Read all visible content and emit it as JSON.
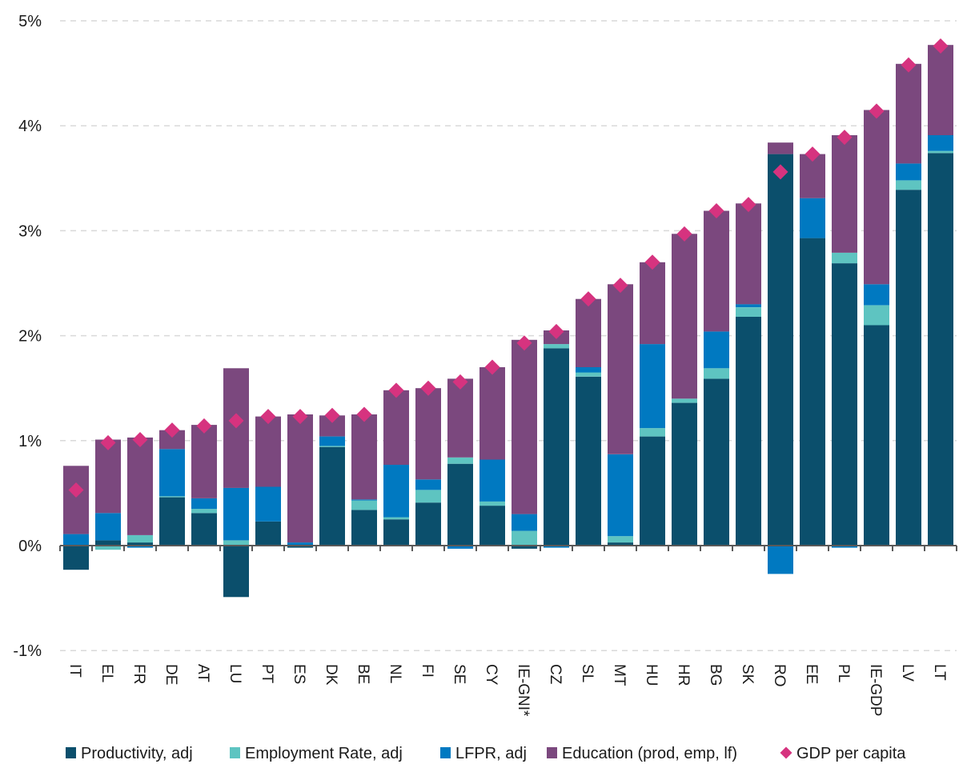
{
  "chart_data": {
    "type": "bar",
    "stacked": true,
    "title": "",
    "xlabel": "",
    "ylabel": "",
    "ylim": [
      -1,
      5
    ],
    "y_unit": "%",
    "y_ticks": [
      "5%",
      "4%",
      "3%",
      "2%",
      "1%",
      "0%",
      "-1%"
    ],
    "y_tick_values": [
      5,
      4,
      3,
      2,
      1,
      0,
      -1
    ],
    "grid": "horizontal dashed",
    "legend_position": "bottom",
    "categories": [
      "IT",
      "EL",
      "FR",
      "DE",
      "AT",
      "LU",
      "PT",
      "ES",
      "DK",
      "BE",
      "NL",
      "FI",
      "SE",
      "CY",
      "IE-GNI*",
      "CZ",
      "SL",
      "MT",
      "HU",
      "HR",
      "BG",
      "SK",
      "RO",
      "EE",
      "PL",
      "IE-GDP",
      "LV",
      "LT"
    ],
    "series": [
      {
        "name": "Productivity, adj",
        "kind": "bar",
        "color": "#0b4f6c",
        "values": [
          -0.23,
          0.05,
          0.03,
          0.46,
          0.31,
          -0.49,
          0.23,
          -0.02,
          0.94,
          0.34,
          0.25,
          0.41,
          0.78,
          0.38,
          -0.03,
          1.88,
          1.61,
          0.03,
          1.04,
          1.36,
          1.59,
          2.18,
          3.73,
          2.93,
          2.69,
          2.1,
          3.39,
          3.74
        ]
      },
      {
        "name": "Employment Rate, adj",
        "kind": "bar",
        "color": "#5ec4c1",
        "values": [
          0.0,
          -0.04,
          0.07,
          0.01,
          0.04,
          0.05,
          0.0,
          0.0,
          0.01,
          0.09,
          0.02,
          0.12,
          0.06,
          0.04,
          0.14,
          0.04,
          0.04,
          0.06,
          0.08,
          0.04,
          0.1,
          0.09,
          0.0,
          0.0,
          0.1,
          0.19,
          0.09,
          0.02
        ]
      },
      {
        "name": "LFPR, adj",
        "kind": "bar",
        "color": "#0079c1",
        "values": [
          0.11,
          0.26,
          -0.02,
          0.45,
          0.1,
          0.5,
          0.33,
          0.03,
          0.09,
          0.01,
          0.5,
          0.1,
          -0.03,
          0.4,
          0.16,
          -0.02,
          0.05,
          0.78,
          0.8,
          0.0,
          0.35,
          0.03,
          -0.27,
          0.38,
          -0.02,
          0.2,
          0.16,
          0.15
        ]
      },
      {
        "name": "Education (prod, emp, lf)",
        "kind": "bar",
        "color": "#7b487e",
        "values": [
          0.65,
          0.7,
          0.93,
          0.18,
          0.7,
          1.14,
          0.67,
          1.22,
          0.2,
          0.81,
          0.71,
          0.87,
          0.75,
          0.88,
          1.66,
          0.13,
          0.65,
          1.62,
          0.78,
          1.57,
          1.15,
          0.96,
          0.11,
          0.42,
          1.12,
          1.66,
          0.95,
          0.86
        ]
      },
      {
        "name": "GDP per capita",
        "kind": "marker",
        "marker": "diamond",
        "color": "#d6337f",
        "values": [
          0.53,
          0.98,
          1.01,
          1.1,
          1.14,
          1.19,
          1.23,
          1.23,
          1.24,
          1.25,
          1.48,
          1.5,
          1.56,
          1.7,
          1.93,
          2.04,
          2.35,
          2.48,
          2.7,
          2.97,
          3.19,
          3.25,
          3.56,
          3.73,
          3.89,
          4.14,
          4.58,
          4.76
        ]
      }
    ]
  }
}
